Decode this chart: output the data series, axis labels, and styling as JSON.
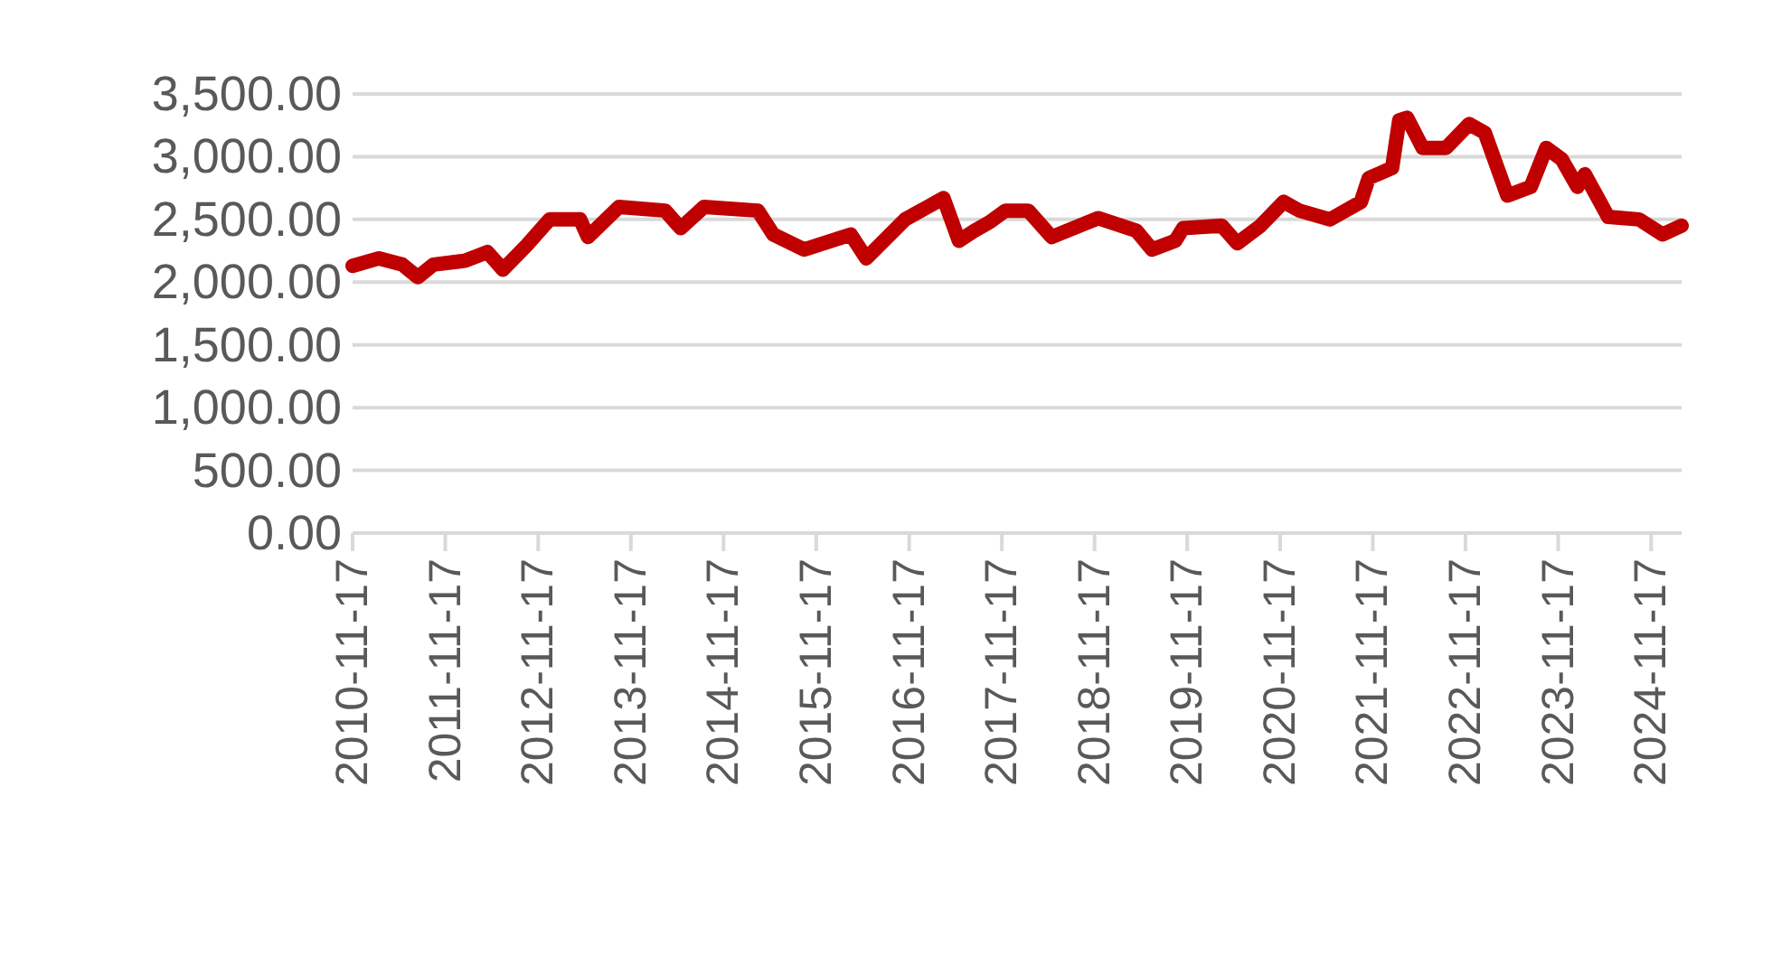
{
  "chart_data": {
    "type": "line",
    "x": [
      "2010-11-17",
      "2011-03",
      "2011-06",
      "2011-08",
      "2011-10",
      "2012-02",
      "2012-05",
      "2012-07",
      "2012-10",
      "2013-01",
      "2013-05",
      "2013-06",
      "2013-10",
      "2014-04",
      "2014-06",
      "2014-09",
      "2015-04",
      "2015-06",
      "2015-10",
      "2016-04",
      "2016-06",
      "2016-11",
      "2017-04",
      "2017-06",
      "2017-08",
      "2017-10",
      "2017-12",
      "2018-03",
      "2018-06",
      "2018-12",
      "2019-05",
      "2019-07",
      "2019-10",
      "2019-11",
      "2020-04",
      "2020-06",
      "2020-09",
      "2020-12",
      "2021-02",
      "2021-06",
      "2021-10",
      "2021-11",
      "2022-02",
      "2022-03",
      "2022-04",
      "2022-06",
      "2022-09",
      "2022-12",
      "2023-02",
      "2023-05",
      "2023-08",
      "2023-10",
      "2023-12",
      "2024-02",
      "2024-03",
      "2024-06",
      "2024-10",
      "2025-01",
      "2025-03-17"
    ],
    "series": [
      {
        "color": "#c00000",
        "values": [
          2130,
          2190,
          2140,
          2040,
          2140,
          2170,
          2240,
          2100,
          2290,
          2500,
          2500,
          2360,
          2600,
          2570,
          2430,
          2600,
          2570,
          2380,
          2260,
          2380,
          2190,
          2500,
          2670,
          2330,
          2410,
          2480,
          2570,
          2570,
          2360,
          2510,
          2410,
          2260,
          2330,
          2430,
          2450,
          2310,
          2450,
          2640,
          2570,
          2500,
          2640,
          2830,
          2910,
          3290,
          3310,
          3070,
          3070,
          3260,
          3190,
          2690,
          2760,
          3070,
          2980,
          2760,
          2860,
          2520,
          2500,
          2380,
          2450
        ]
      }
    ],
    "xlim": [
      "2010-11-17",
      "2025-03-17"
    ],
    "xticks": [
      "2010-11-17",
      "2011-11-17",
      "2012-11-17",
      "2013-11-17",
      "2014-11-17",
      "2015-11-17",
      "2016-11-17",
      "2017-11-17",
      "2018-11-17",
      "2019-11-17",
      "2020-11-17",
      "2021-11-17",
      "2022-11-17",
      "2023-11-17",
      "2024-11-17"
    ],
    "ylim": [
      0,
      3500
    ],
    "yticks": [
      {
        "value": 0,
        "label": "0.00"
      },
      {
        "value": 500,
        "label": "500.00"
      },
      {
        "value": 1000,
        "label": "1,000.00"
      },
      {
        "value": 1500,
        "label": "1,500.00"
      },
      {
        "value": 2000,
        "label": "2,000.00"
      },
      {
        "value": 2500,
        "label": "2,500.00"
      },
      {
        "value": 3000,
        "label": "3,000.00"
      },
      {
        "value": 3500,
        "label": "3,500.00"
      }
    ],
    "grid": "y",
    "marker": "none",
    "line_style": "solid"
  }
}
